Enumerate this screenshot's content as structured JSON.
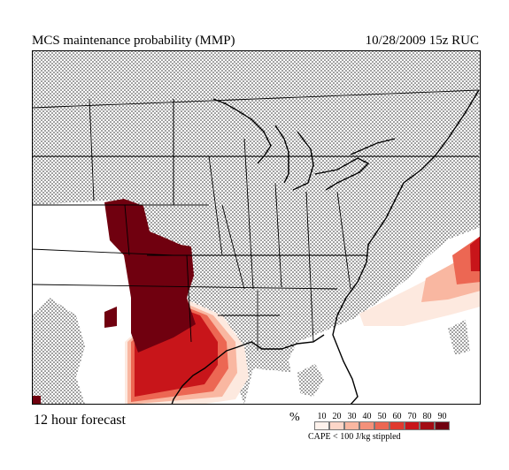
{
  "header": {
    "title": "MCS maintenance probability (MMP)",
    "valid": "10/28/2009  15z  RUC"
  },
  "footer": {
    "forecast": "12 hour forecast",
    "percent_symbol": "%",
    "note": "CAPE < 100 J/kg stippled"
  },
  "legend": [
    {
      "label": "10",
      "color": "#fff2ec"
    },
    {
      "label": "20",
      "color": "#fcd6c8"
    },
    {
      "label": "30",
      "color": "#f9b7a1"
    },
    {
      "label": "40",
      "color": "#f4917a"
    },
    {
      "label": "50",
      "color": "#ec6753"
    },
    {
      "label": "60",
      "color": "#e03a2f"
    },
    {
      "label": "70",
      "color": "#c8151a"
    },
    {
      "label": "80",
      "color": "#a30c14"
    },
    {
      "label": "90",
      "color": "#70000f"
    }
  ]
}
